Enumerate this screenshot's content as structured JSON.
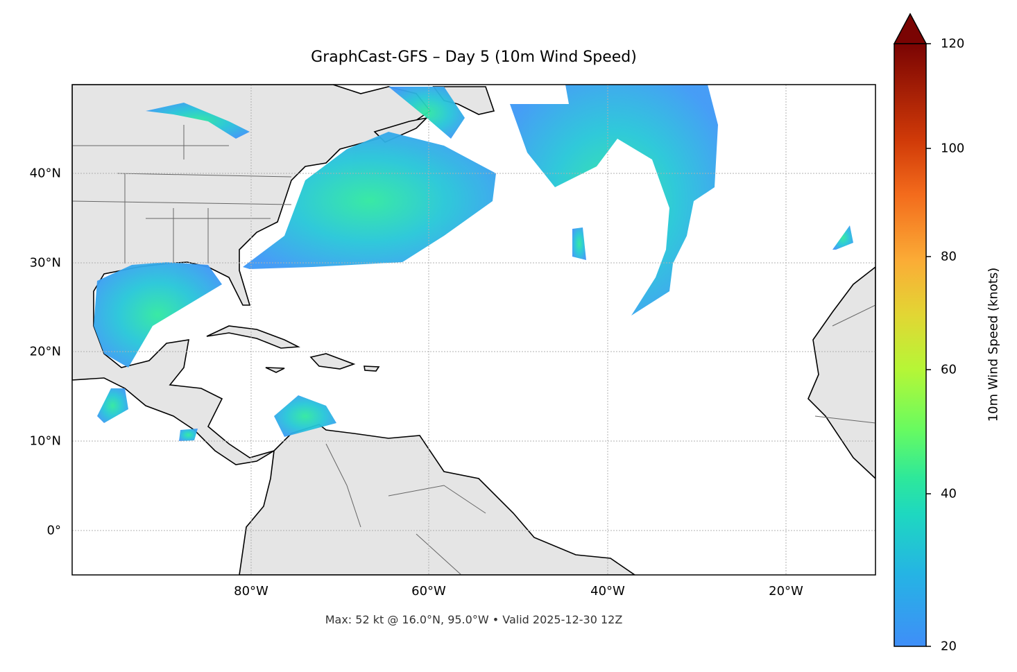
{
  "title": "GraphCast-GFS – Day 5 (10m Wind Speed)",
  "footer": "Max: 52 kt @ 16.0°N, 95.0°W • Valid 2025-12-30 12Z",
  "map": {
    "projection": "Mercator",
    "extent": {
      "lon": [
        -100,
        -10
      ],
      "lat": [
        -5,
        50
      ]
    },
    "x_ticks": [
      "80°W",
      "60°W",
      "40°W",
      "20°W"
    ],
    "y_ticks": [
      "40°N",
      "30°N",
      "20°N",
      "10°N",
      "0°"
    ],
    "gridlines": true,
    "land_color": "#e5e5e5",
    "max_wind": {
      "value_kt": 52,
      "lat": 16.0,
      "lon": -95.0
    }
  },
  "colorbar": {
    "label": "10m Wind Speed (knots)",
    "ticks": [
      "120",
      "100",
      "80",
      "60",
      "40",
      "20"
    ],
    "range": [
      20,
      120
    ],
    "extend": "max",
    "colors": [
      "#3f8ef8",
      "#1ec8d0",
      "#2ee89a",
      "#8cfb48",
      "#d8e233",
      "#fbac36",
      "#f36b1c",
      "#cc3006",
      "#7a0403"
    ]
  }
}
